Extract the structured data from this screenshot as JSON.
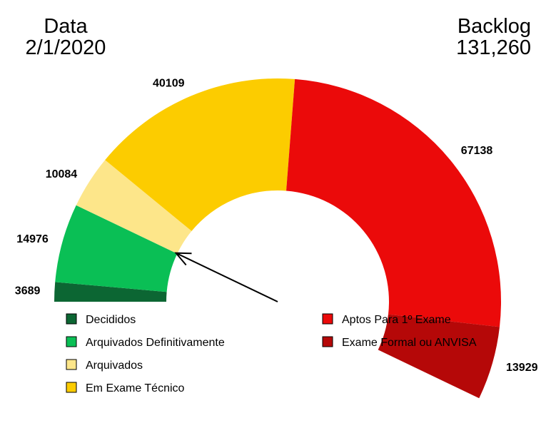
{
  "header": {
    "date_label": "Data",
    "date_value": "2/1/2020",
    "backlog_label": "Backlog",
    "backlog_value": "131,260"
  },
  "chart_data": {
    "type": "pie",
    "variant": "semicircle-donut",
    "title": "",
    "total": 131260,
    "slices": [
      {
        "label": "Decididos",
        "value": 3689,
        "display": "3689",
        "color": "#0c6633"
      },
      {
        "label": "Arquivados Definitivamente",
        "value": 14976,
        "display": "14976",
        "color": "#0abf55"
      },
      {
        "label": "Arquivados",
        "value": 10084,
        "display": "10084",
        "color": "#fde68a"
      },
      {
        "label": "Em Exame Técnico",
        "value": 40109,
        "display": "40109",
        "color": "#fccc00"
      },
      {
        "label": "Aptos Para 1º Exame",
        "value": 67138,
        "display": "67138",
        "color": "#eb0a0a"
      },
      {
        "label": "Exame Formal ou ANVISA",
        "value": 13929,
        "display": "13929",
        "color": "#b50808"
      }
    ],
    "legend": {
      "placement": "bottom",
      "left_column": [
        "Decididos",
        "Arquivados Definitivamente",
        "Arquivados",
        "Em Exame Técnico"
      ],
      "right_column": [
        "Aptos Para 1º Exame",
        "Exame Formal ou ANVISA"
      ]
    },
    "annotations": [
      {
        "type": "arrow",
        "points_to_value": 18665
      }
    ]
  }
}
